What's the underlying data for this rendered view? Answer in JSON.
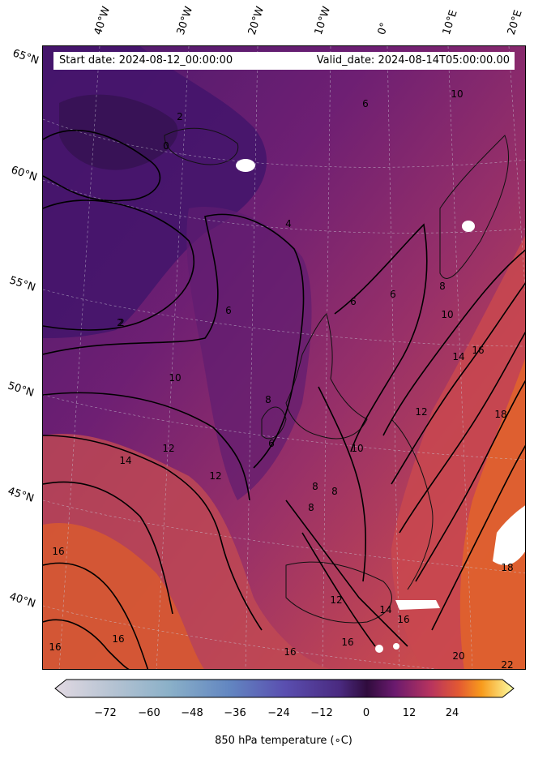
{
  "header": {
    "start_date": "Start date: 2024-08-12_00:00:00",
    "valid_date": "Valid_date: 2024-08-14T05:00:00.00"
  },
  "lat_labels": [
    "65°N",
    "60°N",
    "55°N",
    "50°N",
    "45°N",
    "40°N"
  ],
  "lon_labels": [
    "40°W",
    "30°W",
    "20°W",
    "10°W",
    "0°",
    "10°E",
    "20°E"
  ],
  "contour_labels": [
    "2",
    "0",
    "2",
    "4",
    "6",
    "6",
    "10",
    "2",
    "10",
    "12",
    "14",
    "12",
    "16",
    "16",
    "16",
    "16",
    "8",
    "8",
    "12",
    "14",
    "16",
    "18",
    "18",
    "20",
    "22",
    "10",
    "8",
    "6",
    "6",
    "8",
    "8",
    "10",
    "12",
    "14",
    "16",
    "16",
    "6"
  ],
  "colorbar": {
    "label": "850 hPa temperature (∘C)",
    "ticks": [
      "−72",
      "−60",
      "−48",
      "−36",
      "−24",
      "−12",
      "0",
      "12",
      "24"
    ],
    "min": -84,
    "max": 36,
    "extend": "both",
    "colormap": "twilight-to-inferno"
  },
  "colors": {
    "cold_purple": "#3b1464",
    "mid_purple": "#6e1f73",
    "warm_magenta": "#a33366",
    "warm_red": "#cf4b4a",
    "hot_orange": "#e8662b",
    "contour": "#000000"
  }
}
